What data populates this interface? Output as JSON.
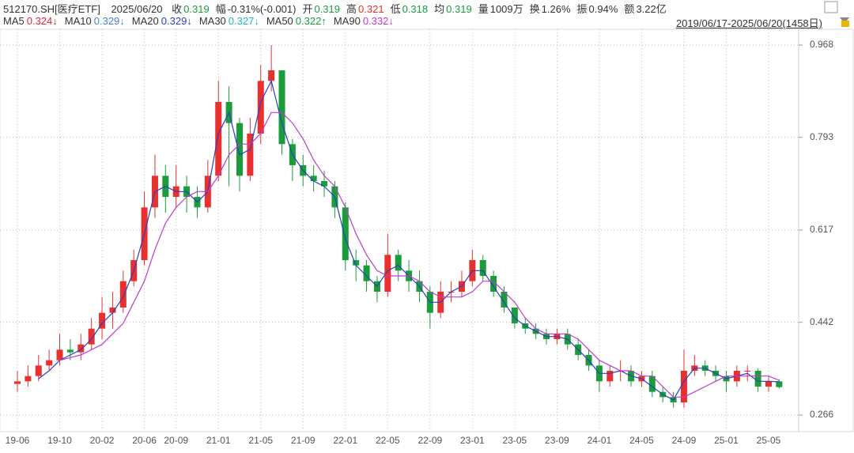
{
  "chart_data": {
    "type": "candlestick",
    "title": "512170.SH[医疗ETF]",
    "date": "2025/06/20",
    "quote": [
      {
        "label": "收",
        "value": 0.319,
        "color": "#1a9c3a"
      },
      {
        "label": "幅",
        "value": "-0.31%(-0.001)",
        "color": "#333333"
      },
      {
        "label": "开",
        "value": 0.319,
        "color": "#1a9c3a"
      },
      {
        "label": "高",
        "value": 0.321,
        "color": "#e8312f"
      },
      {
        "label": "低",
        "value": 0.318,
        "color": "#1a9c3a"
      },
      {
        "label": "均",
        "value": 0.319,
        "color": "#1a9c3a"
      },
      {
        "label": "量",
        "value": "1009万",
        "color": "#333333"
      },
      {
        "label": "换",
        "value": "1.26%",
        "color": "#333333"
      },
      {
        "label": "振",
        "value": "0.94%",
        "color": "#333333"
      },
      {
        "label": "额",
        "value": "3.22亿",
        "color": "#333333"
      }
    ],
    "range": "2019/06/17-2025/06/20(1458日)",
    "categories": [
      "19-06",
      null,
      null,
      null,
      "19-10",
      null,
      null,
      null,
      "20-02",
      null,
      null,
      null,
      "20-06",
      null,
      null,
      "20-09",
      null,
      null,
      null,
      "21-01",
      null,
      null,
      null,
      "21-05",
      null,
      null,
      null,
      "21-09",
      null,
      null,
      null,
      "22-01",
      null,
      null,
      null,
      "22-05",
      null,
      null,
      null,
      "22-09",
      null,
      null,
      null,
      "23-01",
      null,
      null,
      null,
      "23-05",
      null,
      null,
      null,
      "23-09",
      null,
      null,
      null,
      "24-01",
      null,
      null,
      null,
      "24-05",
      null,
      null,
      null,
      "24-09",
      null,
      null,
      null,
      "25-01",
      null,
      null,
      null,
      "25-05",
      null
    ],
    "open": [
      0.325,
      0.33,
      0.34,
      0.36,
      0.37,
      0.39,
      0.385,
      0.4,
      0.43,
      0.46,
      0.47,
      0.52,
      0.56,
      0.66,
      0.72,
      0.68,
      0.7,
      0.68,
      0.66,
      0.72,
      0.86,
      0.82,
      0.72,
      0.8,
      0.9,
      0.92,
      0.78,
      0.74,
      0.72,
      0.71,
      0.7,
      0.66,
      0.56,
      0.55,
      0.52,
      0.5,
      0.57,
      0.54,
      0.52,
      0.5,
      0.46,
      0.5,
      0.5,
      0.52,
      0.56,
      0.53,
      0.5,
      0.47,
      0.44,
      0.43,
      0.42,
      0.41,
      0.42,
      0.4,
      0.38,
      0.36,
      0.33,
      0.35,
      0.35,
      0.33,
      0.34,
      0.31,
      0.3,
      0.29,
      0.35,
      0.36,
      0.35,
      0.34,
      0.33,
      0.35,
      0.35,
      0.32,
      0.33
    ],
    "high": [
      0.35,
      0.36,
      0.38,
      0.39,
      0.42,
      0.41,
      0.42,
      0.45,
      0.49,
      0.5,
      0.54,
      0.58,
      0.69,
      0.76,
      0.74,
      0.74,
      0.72,
      0.7,
      0.75,
      0.9,
      0.89,
      0.83,
      0.83,
      0.93,
      0.968,
      0.92,
      0.79,
      0.76,
      0.74,
      0.73,
      0.71,
      0.67,
      0.58,
      0.56,
      0.53,
      0.61,
      0.58,
      0.56,
      0.54,
      0.51,
      0.52,
      0.52,
      0.54,
      0.58,
      0.57,
      0.54,
      0.51,
      0.47,
      0.45,
      0.44,
      0.43,
      0.43,
      0.43,
      0.41,
      0.39,
      0.37,
      0.36,
      0.37,
      0.36,
      0.35,
      0.35,
      0.32,
      0.31,
      0.39,
      0.38,
      0.37,
      0.36,
      0.35,
      0.36,
      0.36,
      0.355,
      0.34,
      0.334
    ],
    "low": [
      0.31,
      0.32,
      0.33,
      0.35,
      0.36,
      0.37,
      0.37,
      0.39,
      0.41,
      0.43,
      0.46,
      0.51,
      0.55,
      0.64,
      0.65,
      0.66,
      0.65,
      0.64,
      0.65,
      0.71,
      0.7,
      0.69,
      0.71,
      0.78,
      0.88,
      0.76,
      0.71,
      0.7,
      0.69,
      0.68,
      0.64,
      0.54,
      0.52,
      0.5,
      0.48,
      0.49,
      0.52,
      0.5,
      0.48,
      0.43,
      0.45,
      0.48,
      0.49,
      0.51,
      0.52,
      0.49,
      0.46,
      0.43,
      0.42,
      0.41,
      0.4,
      0.4,
      0.39,
      0.37,
      0.35,
      0.31,
      0.32,
      0.33,
      0.32,
      0.32,
      0.3,
      0.29,
      0.28,
      0.28,
      0.34,
      0.34,
      0.33,
      0.31,
      0.32,
      0.33,
      0.31,
      0.31,
      0.316
    ],
    "close": [
      0.33,
      0.34,
      0.36,
      0.37,
      0.39,
      0.385,
      0.4,
      0.43,
      0.46,
      0.47,
      0.52,
      0.56,
      0.66,
      0.72,
      0.68,
      0.7,
      0.68,
      0.66,
      0.72,
      0.86,
      0.82,
      0.72,
      0.8,
      0.9,
      0.92,
      0.78,
      0.74,
      0.72,
      0.71,
      0.7,
      0.66,
      0.56,
      0.55,
      0.52,
      0.5,
      0.57,
      0.54,
      0.52,
      0.5,
      0.46,
      0.5,
      0.5,
      0.52,
      0.56,
      0.53,
      0.5,
      0.47,
      0.44,
      0.43,
      0.42,
      0.41,
      0.42,
      0.4,
      0.38,
      0.36,
      0.33,
      0.35,
      0.35,
      0.33,
      0.34,
      0.31,
      0.3,
      0.29,
      0.35,
      0.36,
      0.35,
      0.34,
      0.33,
      0.35,
      0.35,
      0.32,
      0.33,
      0.319
    ],
    "up_color": "#e8312f",
    "down_color": "#1a9c3a",
    "series": [
      {
        "name": "MA5",
        "color": "#e0283c",
        "last": 0.324,
        "arrow": "↓"
      },
      {
        "name": "MA10",
        "color": "#4a7fd6",
        "last": 0.329,
        "arrow": "↓"
      },
      {
        "name": "MA20",
        "color": "#2a3fc4",
        "last": 0.329,
        "arrow": "↓",
        "values": [
          null,
          null,
          0.335,
          0.35,
          0.37,
          0.38,
          0.39,
          0.41,
          0.44,
          0.46,
          0.49,
          0.54,
          0.61,
          0.69,
          0.7,
          0.69,
          0.69,
          0.67,
          0.69,
          0.8,
          0.84,
          0.76,
          0.77,
          0.86,
          0.9,
          0.82,
          0.76,
          0.73,
          0.71,
          0.7,
          0.68,
          0.6,
          0.55,
          0.53,
          0.51,
          0.54,
          0.55,
          0.53,
          0.51,
          0.48,
          0.48,
          0.5,
          0.51,
          0.54,
          0.54,
          0.51,
          0.48,
          0.45,
          0.435,
          0.425,
          0.415,
          0.415,
          0.41,
          0.39,
          0.37,
          0.345,
          0.345,
          0.35,
          0.34,
          0.335,
          0.32,
          0.305,
          0.295,
          0.33,
          0.355,
          0.355,
          0.345,
          0.335,
          0.34,
          0.345,
          0.33,
          0.33,
          0.329
        ]
      },
      {
        "name": "MA30",
        "color": "#1fb5c8",
        "last": 0.327,
        "arrow": "↓"
      },
      {
        "name": "MA50",
        "color": "#1a9c3a",
        "last": 0.322,
        "arrow": "↑"
      },
      {
        "name": "MA90",
        "color": "#c23ad0",
        "last": 0.332,
        "arrow": "↓",
        "values": [
          null,
          null,
          null,
          null,
          0.37,
          0.375,
          0.38,
          0.39,
          0.4,
          0.42,
          0.44,
          0.48,
          0.52,
          0.58,
          0.63,
          0.66,
          0.68,
          0.69,
          0.69,
          0.72,
          0.76,
          0.78,
          0.78,
          0.8,
          0.84,
          0.84,
          0.82,
          0.79,
          0.75,
          0.72,
          0.7,
          0.66,
          0.61,
          0.57,
          0.54,
          0.53,
          0.53,
          0.53,
          0.52,
          0.5,
          0.49,
          0.49,
          0.49,
          0.5,
          0.52,
          0.52,
          0.5,
          0.48,
          0.45,
          0.43,
          0.42,
          0.42,
          0.42,
          0.41,
          0.39,
          0.37,
          0.36,
          0.35,
          0.35,
          0.34,
          0.34,
          0.32,
          0.3,
          0.3,
          0.31,
          0.32,
          0.33,
          0.34,
          0.34,
          0.34,
          0.34,
          0.34,
          0.332
        ]
      }
    ],
    "ylim": [
      0.236,
      0.998
    ],
    "yticks": [
      0.266,
      0.442,
      0.617,
      0.793,
      0.968
    ],
    "grid": true
  }
}
